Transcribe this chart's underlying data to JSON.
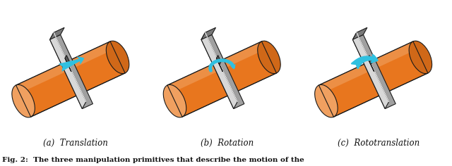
{
  "bg_color": "#ffffff",
  "fig_width": 6.4,
  "fig_height": 2.36,
  "dpi": 100,
  "subfig_labels": [
    "(a)  Translation",
    "(b)  Rotation",
    "(c)  Rototranslation"
  ],
  "caption_text": "Fig. 2:  The three manipulation primitives that describe the motion of the",
  "caption_fontsize": 7.5,
  "label_fontsize": 8.5,
  "cylinder_color": "#E8761E",
  "cylinder_top": "#F0A060",
  "cylinder_dark": "#C05810",
  "cylinder_end": "#D06818",
  "gripper_top": "#D8D8D8",
  "gripper_front": "#A0A0A0",
  "gripper_side": "#787878",
  "gripper_dark": "#585858",
  "arrow_color": "#30C0E0",
  "outline_color": "#1A1A1A"
}
